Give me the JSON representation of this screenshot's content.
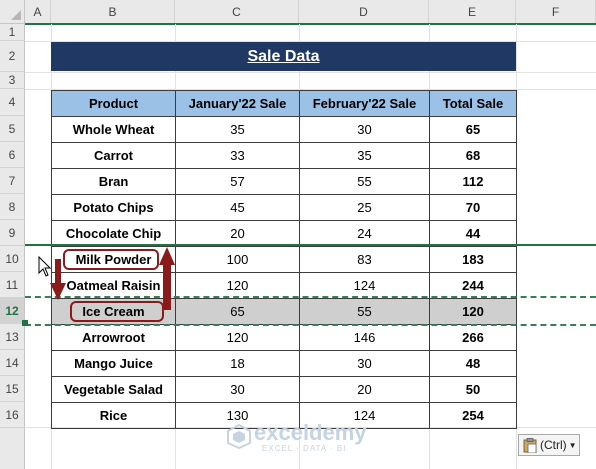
{
  "columns": [
    "A",
    "B",
    "C",
    "D",
    "E",
    "F"
  ],
  "rows": [
    "1",
    "2",
    "3",
    "4",
    "5",
    "6",
    "7",
    "8",
    "9",
    "10",
    "11",
    "12",
    "13",
    "14",
    "15",
    "16"
  ],
  "selected_row": "12",
  "title": "Sale Data",
  "table": {
    "headers": [
      "Product",
      "January'22 Sale",
      "February'22 Sale",
      "Total Sale"
    ],
    "rows": [
      [
        "Whole Wheat",
        "35",
        "30",
        "65"
      ],
      [
        "Carrot",
        "33",
        "35",
        "68"
      ],
      [
        "Bran",
        "57",
        "55",
        "112"
      ],
      [
        "Potato Chips",
        "45",
        "25",
        "70"
      ],
      [
        "Chocolate Chip",
        "20",
        "24",
        "44"
      ],
      [
        "Milk Powder",
        "100",
        "83",
        "183"
      ],
      [
        "Oatmeal Raisin",
        "120",
        "124",
        "244"
      ],
      [
        "Ice Cream",
        "65",
        "55",
        "120"
      ],
      [
        "Arrowroot",
        "120",
        "146",
        "266"
      ],
      [
        "Mango Juice",
        "18",
        "30",
        "48"
      ],
      [
        "Vegetable Salad",
        "30",
        "20",
        "50"
      ],
      [
        "Rice",
        "130",
        "124",
        "254"
      ]
    ]
  },
  "paste_options": {
    "label": "(Ctrl)",
    "icon": "clipboard-icon"
  },
  "watermark": {
    "name": "exceldemy",
    "tagline": "EXCEL · DATA · BI"
  },
  "colors": {
    "title_bg": "#203864",
    "header_bg": "#9bc2e6",
    "annotation": "#8b1a1a",
    "selection": "#217346"
  }
}
